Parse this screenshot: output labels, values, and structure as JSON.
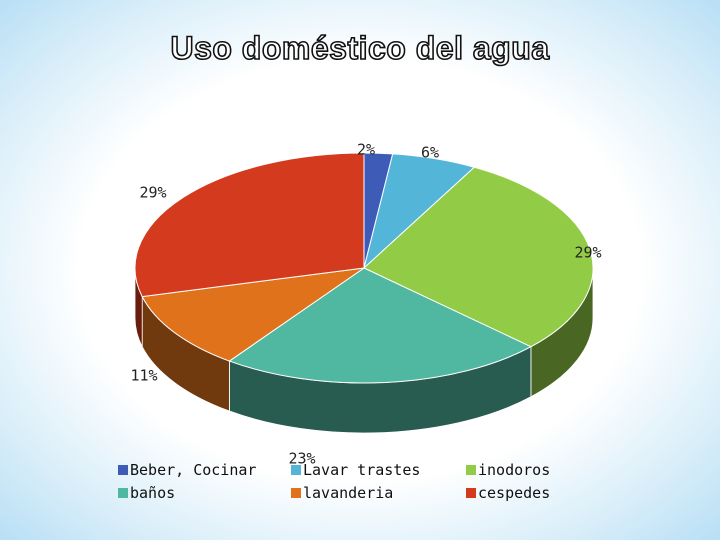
{
  "chart_data": {
    "type": "pie",
    "title": "Uso doméstico del agua",
    "categories": [
      "Beber, Cocinar",
      "Lavar trastes",
      "inodoros",
      "baños",
      "lavanderia",
      "cespedes"
    ],
    "values": [
      2,
      6,
      29,
      23,
      11,
      29
    ],
    "labels": [
      "2%",
      "6%",
      "29%",
      "23%",
      "11%",
      "29%"
    ],
    "colors": [
      "#3e5bb8",
      "#53b5d8",
      "#92cc46",
      "#50b8a0",
      "#e0721c",
      "#d43a1e"
    ],
    "legend_position": "bottom",
    "legend": [
      {
        "label": "Beber, Cocinar",
        "color": "#3e5bb8"
      },
      {
        "label": "baños",
        "color": "#50b8a0"
      },
      {
        "label": "Lavar trastes",
        "color": "#53b5d8"
      },
      {
        "label": "lavanderia",
        "color": "#e0721c"
      },
      {
        "label": "inodoros",
        "color": "#92cc46"
      },
      {
        "label": "cespedes",
        "color": "#d43a1e"
      }
    ]
  }
}
